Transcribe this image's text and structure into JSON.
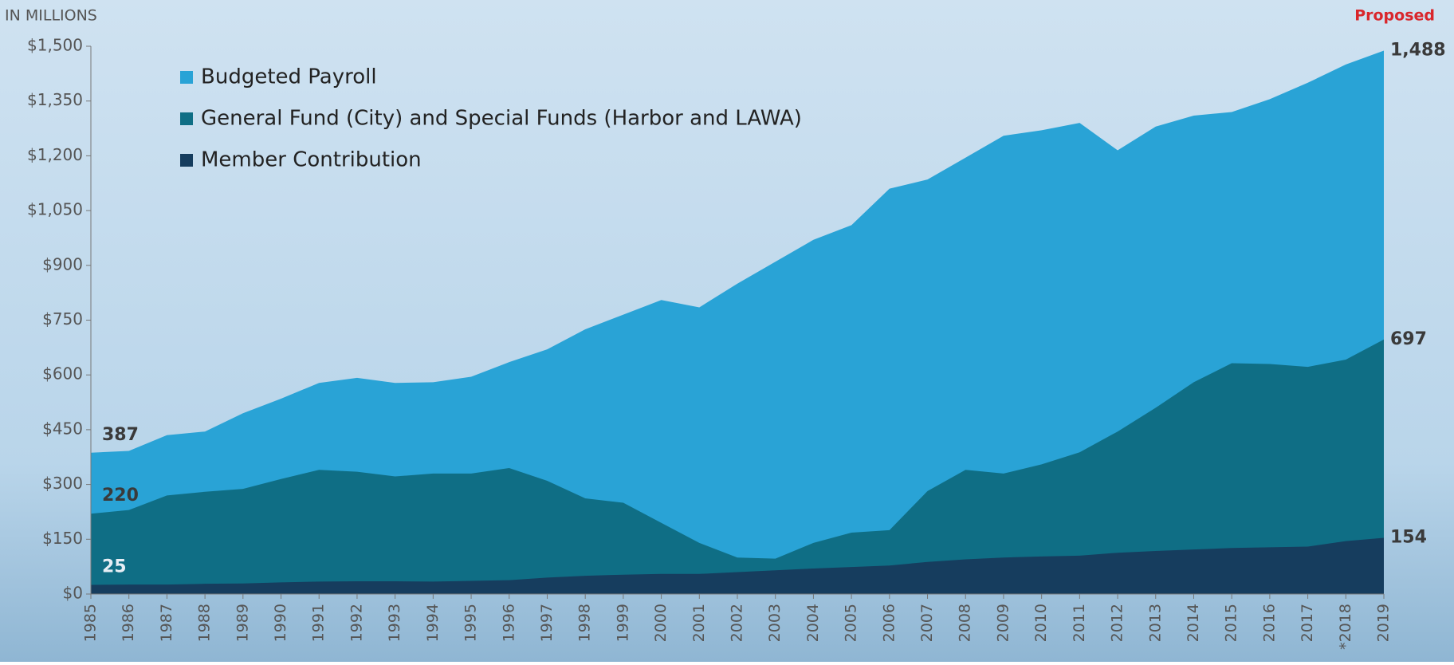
{
  "chart_data": {
    "type": "area",
    "subtitle": "IN MILLIONS",
    "annotations": [
      "Proposed"
    ],
    "categories": [
      "1985",
      "1986",
      "1987",
      "1988",
      "1989",
      "1990",
      "1991",
      "1992",
      "1993",
      "1994",
      "1995",
      "1996",
      "1997",
      "1998",
      "1999",
      "2000",
      "2001",
      "2002",
      "2003",
      "2004",
      "2005",
      "2006",
      "2007",
      "2008",
      "2009",
      "2010",
      "2011",
      "2012",
      "2013",
      "2014",
      "2015",
      "2016",
      "2017",
      "*2018",
      "2019"
    ],
    "series": [
      {
        "name": "Budgeted Payroll",
        "color": "#29a3d6",
        "values": [
          387,
          392,
          435,
          445,
          495,
          535,
          578,
          592,
          578,
          580,
          595,
          635,
          670,
          725,
          765,
          805,
          785,
          850,
          910,
          970,
          1010,
          1110,
          1135,
          1195,
          1255,
          1270,
          1290,
          1215,
          1280,
          1310,
          1320,
          1355,
          1400,
          1450,
          1488
        ],
        "value_labels": [
          "387",
          null,
          null,
          null,
          null,
          null,
          null,
          null,
          null,
          null,
          null,
          null,
          null,
          null,
          null,
          null,
          null,
          null,
          null,
          null,
          null,
          null,
          null,
          null,
          null,
          null,
          null,
          null,
          null,
          null,
          null,
          null,
          null,
          null,
          "1,488"
        ]
      },
      {
        "name": "General Fund (City) and Special Funds (Harbor and LAWA)",
        "color": "#0f6e85",
        "values": [
          220,
          230,
          270,
          280,
          288,
          315,
          340,
          335,
          322,
          330,
          330,
          345,
          310,
          262,
          250,
          195,
          140,
          100,
          97,
          140,
          168,
          175,
          282,
          340,
          330,
          355,
          388,
          445,
          510,
          580,
          632,
          630,
          622,
          642,
          697
        ],
        "value_labels": [
          "220",
          null,
          null,
          null,
          null,
          null,
          null,
          null,
          null,
          null,
          null,
          null,
          null,
          null,
          null,
          null,
          null,
          null,
          null,
          null,
          null,
          null,
          null,
          null,
          null,
          null,
          null,
          null,
          null,
          null,
          null,
          null,
          null,
          null,
          "697"
        ]
      },
      {
        "name": "Member Contribution",
        "color": "#163d5e",
        "values": [
          25,
          26,
          26,
          28,
          29,
          32,
          34,
          35,
          35,
          34,
          36,
          38,
          45,
          50,
          53,
          55,
          55,
          60,
          65,
          70,
          74,
          78,
          88,
          95,
          100,
          103,
          105,
          113,
          118,
          122,
          126,
          128,
          130,
          145,
          154
        ],
        "value_labels": [
          "25",
          null,
          null,
          null,
          null,
          null,
          null,
          null,
          null,
          null,
          null,
          null,
          null,
          null,
          null,
          null,
          null,
          null,
          null,
          null,
          null,
          null,
          null,
          null,
          null,
          null,
          null,
          null,
          null,
          null,
          null,
          null,
          null,
          null,
          "154"
        ]
      }
    ],
    "ylim": [
      0,
      1500
    ],
    "yticks": [
      {
        "value": 0,
        "label": "$0"
      },
      {
        "value": 150,
        "label": "$150"
      },
      {
        "value": 300,
        "label": "$300"
      },
      {
        "value": 450,
        "label": "$450"
      },
      {
        "value": 600,
        "label": "$600"
      },
      {
        "value": 750,
        "label": "$750"
      },
      {
        "value": 900,
        "label": "$900"
      },
      {
        "value": 1050,
        "label": "$1,050"
      },
      {
        "value": 1200,
        "label": "$1,200"
      },
      {
        "value": 1350,
        "label": "$1,350"
      },
      {
        "value": 1500,
        "label": "$1,500"
      }
    ],
    "legend": "upper left",
    "layering": "overlaid"
  }
}
